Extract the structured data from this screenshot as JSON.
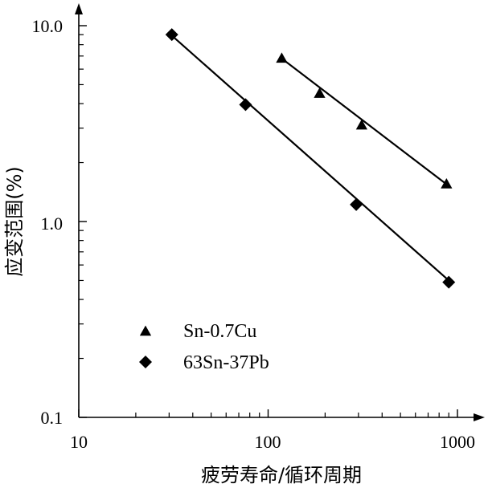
{
  "chart_data": {
    "type": "scatter",
    "title": "",
    "xlabel": "疲劳寿命/循环周期",
    "ylabel": "应变范围(%)",
    "x_scale": "log",
    "y_scale": "log",
    "xlim": [
      10,
      1000
    ],
    "ylim": [
      0.1,
      10
    ],
    "x_major_ticks": [
      10,
      100,
      1000
    ],
    "x_tick_labels": [
      "10",
      "100",
      "1000"
    ],
    "y_major_ticks": [
      0.1,
      1.0,
      10.0
    ],
    "y_tick_labels": [
      "0.1",
      "1.0",
      "10.0"
    ],
    "grid": false,
    "legend_position": "bottom-left",
    "series": [
      {
        "name": "Sn-0.7Cu",
        "marker": "triangle",
        "color": "#000000",
        "points": [
          {
            "x": 118,
            "y": 6.8
          },
          {
            "x": 187,
            "y": 4.5
          },
          {
            "x": 312,
            "y": 3.1
          },
          {
            "x": 875,
            "y": 1.55
          }
        ],
        "fit_line": [
          {
            "x": 118,
            "y": 6.8
          },
          {
            "x": 875,
            "y": 1.55
          }
        ]
      },
      {
        "name": "63Sn-37Pb",
        "marker": "diamond",
        "color": "#000000",
        "points": [
          {
            "x": 31,
            "y": 9.0
          },
          {
            "x": 76,
            "y": 3.95
          },
          {
            "x": 292,
            "y": 1.22
          },
          {
            "x": 900,
            "y": 0.49
          }
        ],
        "fit_line": [
          {
            "x": 31,
            "y": 8.9
          },
          {
            "x": 900,
            "y": 0.5
          }
        ]
      }
    ]
  }
}
